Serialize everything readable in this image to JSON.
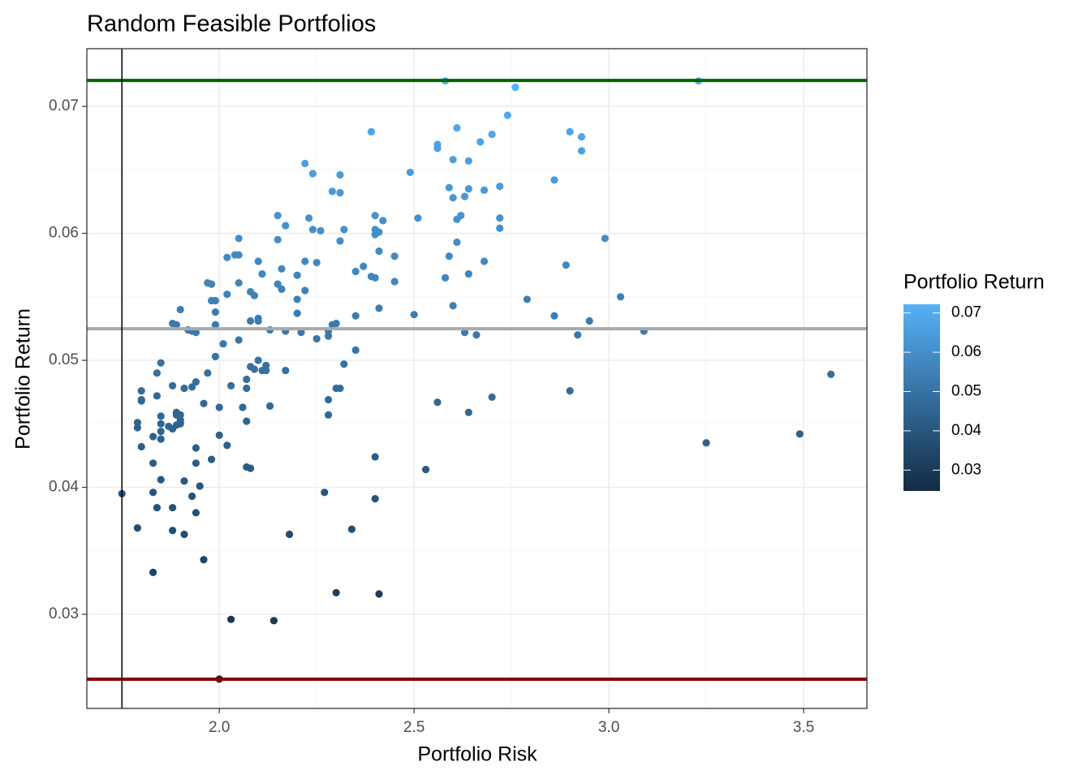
{
  "chart_data": {
    "type": "scatter",
    "title": "Random Feasible Portfolios",
    "x_label": "Portfolio Risk",
    "y_label": "Portfolio Return",
    "xlim": [
      1.66,
      3.6625
    ],
    "ylim": [
      0.02259,
      0.07454
    ],
    "xticks": [
      {
        "value": 2,
        "label": "2.0"
      },
      2.5,
      {
        "value": 3,
        "label": "3.0"
      },
      3.5
    ],
    "yticks": [
      0.03,
      0.04,
      0.05,
      0.06,
      0.07
    ],
    "x_minor_ticks": [
      1.75,
      2.25,
      2.75,
      3.25
    ],
    "y_minor_ticks": [
      0.025,
      0.035,
      0.045,
      0.055,
      0.065
    ],
    "grid": true,
    "hlines": [
      {
        "value": 0.07204,
        "color": "#006400"
      },
      {
        "value": 0.05249,
        "color": "#a9a9a9"
      },
      {
        "value": 0.02489,
        "color": "#8b0000"
      }
    ],
    "vlines": [
      {
        "value": 1.75,
        "color": "#000000"
      }
    ],
    "colorbar": {
      "title": "Portfolio Return",
      "low": "#132B43",
      "high": "#56B1F7",
      "lim": [
        0.0247,
        0.0722
      ],
      "ticks": [
        0.03,
        0.04,
        0.05,
        0.06,
        0.07
      ],
      "position": "right"
    },
    "x": [
      1.75,
      2.0,
      2.58,
      3.23,
      2.76,
      2.74,
      2.39,
      2.61,
      2.9,
      2.93,
      2.7,
      2.67,
      2.56,
      2.56,
      2.93,
      2.6,
      2.64,
      2.22,
      2.49,
      2.24,
      2.31,
      2.86,
      2.59,
      2.72,
      2.64,
      2.68,
      2.29,
      2.31,
      2.63,
      2.6,
      2.15,
      2.23,
      2.4,
      2.51,
      2.62,
      2.72,
      2.42,
      2.61,
      2.17,
      2.24,
      2.26,
      2.32,
      2.4,
      2.41,
      2.72,
      2.4,
      2.05,
      2.15,
      2.99,
      2.31,
      2.61,
      2.41,
      2.04,
      2.05,
      2.02,
      2.59,
      2.45,
      2.1,
      2.22,
      2.25,
      2.68,
      2.89,
      2.37,
      2.16,
      2.35,
      2.11,
      2.2,
      2.64,
      2.39,
      2.58,
      2.4,
      2.45,
      2.05,
      1.97,
      1.98,
      2.15,
      2.16,
      2.22,
      2.08,
      2.02,
      3.03,
      2.09,
      1.98,
      2.2,
      2.79,
      1.99,
      2.6,
      1.9,
      2.41,
      1.99,
      2.2,
      2.5,
      2.86,
      2.35,
      2.08,
      2.1,
      2.1,
      2.3,
      2.95,
      1.88,
      1.89,
      1.99,
      2.29,
      1.92,
      1.93,
      2.17,
      2.13,
      2.21,
      2.28,
      1.94,
      2.63,
      2.66,
      2.92,
      3.09,
      2.25,
      2.28,
      2.01,
      2.05,
      2.35,
      1.99,
      2.1,
      1.85,
      2.12,
      2.32,
      2.08,
      2.09,
      2.11,
      2.12,
      2.17,
      3.57,
      1.84,
      1.97,
      2.07,
      1.94,
      1.91,
      1.88,
      1.93,
      2.03,
      2.07,
      2.3,
      2.31,
      1.8,
      2.9,
      1.8,
      1.8,
      2.28,
      2.7,
      1.84,
      2.56,
      1.96,
      2.0,
      2.06,
      2.13,
      1.89,
      1.89,
      1.85,
      2.28,
      2.64,
      1.9,
      1.9,
      2.07,
      1.79,
      1.9,
      1.85,
      1.89,
      1.87,
      1.9,
      1.79,
      1.88,
      1.85,
      3.49,
      1.83,
      2.0,
      3.25,
      1.85,
      2.02,
      1.8,
      1.94,
      2.4,
      1.98,
      1.83,
      1.94,
      2.07,
      2.08,
      2.53,
      1.85,
      1.91,
      1.95,
      1.83,
      2.27,
      1.93,
      2.4,
      1.84,
      1.88,
      1.94,
      1.79,
      1.88,
      2.34,
      1.91,
      2.18,
      1.96,
      1.83,
      2.3,
      2.41,
      2.03,
      2.14
    ],
    "y": [
      0.0395,
      0.0249,
      0.072,
      0.072,
      0.0715,
      0.0693,
      0.068,
      0.0683,
      0.068,
      0.0676,
      0.0678,
      0.0672,
      0.067,
      0.0667,
      0.0665,
      0.0658,
      0.0657,
      0.0655,
      0.0648,
      0.0647,
      0.0646,
      0.0642,
      0.0636,
      0.0637,
      0.0635,
      0.0634,
      0.0633,
      0.0632,
      0.0629,
      0.0628,
      0.0614,
      0.0612,
      0.0614,
      0.0612,
      0.0614,
      0.0612,
      0.061,
      0.0611,
      0.0606,
      0.0603,
      0.0602,
      0.0603,
      0.0603,
      0.0601,
      0.0604,
      0.0599,
      0.0596,
      0.0595,
      0.0596,
      0.0594,
      0.0593,
      0.0586,
      0.0583,
      0.0583,
      0.0581,
      0.0582,
      0.0582,
      0.0578,
      0.0578,
      0.0577,
      0.0578,
      0.0575,
      0.0574,
      0.0572,
      0.057,
      0.0568,
      0.0567,
      0.0568,
      0.0566,
      0.0565,
      0.0565,
      0.0562,
      0.0561,
      0.0561,
      0.056,
      0.056,
      0.0556,
      0.0555,
      0.0554,
      0.0552,
      0.055,
      0.0551,
      0.0547,
      0.0548,
      0.0548,
      0.0547,
      0.0543,
      0.054,
      0.0541,
      0.0538,
      0.0537,
      0.0536,
      0.0535,
      0.0535,
      0.0531,
      0.0533,
      0.0531,
      0.0529,
      0.0531,
      0.0529,
      0.0528,
      0.0528,
      0.0528,
      0.0524,
      0.0523,
      0.0523,
      0.0524,
      0.0522,
      0.0523,
      0.0522,
      0.0522,
      0.052,
      0.052,
      0.0523,
      0.0517,
      0.0519,
      0.0513,
      0.0516,
      0.0508,
      0.0503,
      0.05,
      0.0498,
      0.0496,
      0.0497,
      0.0495,
      0.0493,
      0.0492,
      0.0492,
      0.0492,
      0.0489,
      0.049,
      0.049,
      0.0485,
      0.0483,
      0.0478,
      0.048,
      0.0479,
      0.048,
      0.0478,
      0.0478,
      0.0478,
      0.0476,
      0.0476,
      0.0469,
      0.0468,
      0.0469,
      0.0471,
      0.0472,
      0.0467,
      0.0466,
      0.0463,
      0.0463,
      0.0464,
      0.0459,
      0.0457,
      0.0456,
      0.0457,
      0.0459,
      0.0457,
      0.0453,
      0.0452,
      0.0451,
      0.0451,
      0.045,
      0.0449,
      0.0448,
      0.045,
      0.0447,
      0.0446,
      0.0444,
      0.0442,
      0.044,
      0.0441,
      0.0435,
      0.0438,
      0.0433,
      0.0432,
      0.0431,
      0.0424,
      0.0422,
      0.0419,
      0.0419,
      0.0416,
      0.0415,
      0.0414,
      0.0406,
      0.0405,
      0.0401,
      0.0396,
      0.0396,
      0.0393,
      0.0391,
      0.0384,
      0.0384,
      0.038,
      0.0368,
      0.0366,
      0.0367,
      0.0363,
      0.0363,
      0.0343,
      0.0333,
      0.0317,
      0.0316,
      0.0296,
      0.0295
    ]
  }
}
